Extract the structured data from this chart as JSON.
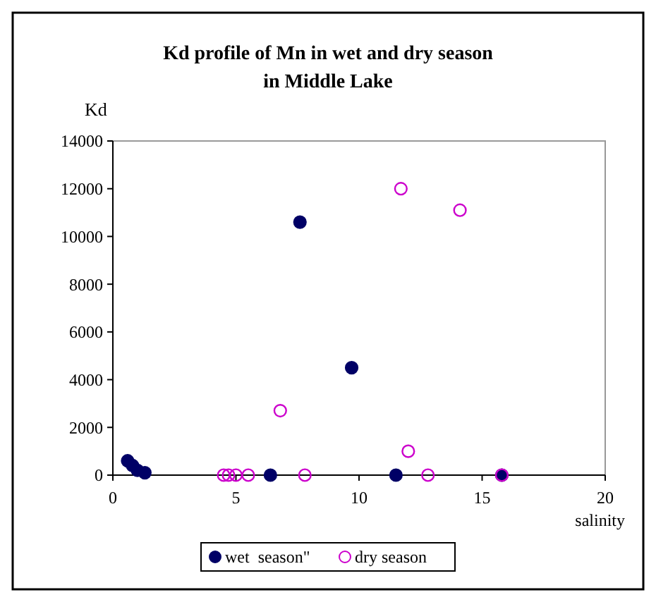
{
  "chart_data": {
    "type": "scatter",
    "title": "Kd profile of Mn in wet and dry season in Middle Lake",
    "xlabel": "salinity",
    "ylabel": "Kd",
    "xlim": [
      0,
      20
    ],
    "xticks": [
      0,
      5,
      10,
      15,
      20
    ],
    "ylim": [
      0,
      14000
    ],
    "yticks": [
      0,
      2000,
      4000,
      6000,
      8000,
      10000,
      12000,
      14000
    ],
    "grid": false,
    "legend": "bottom",
    "marker": "circle",
    "series": [
      {
        "name": "wet  season\"",
        "color": "#000066",
        "x": [
          0.6,
          0.8,
          1.0,
          1.3,
          6.4,
          7.6,
          9.7,
          11.5,
          15.8
        ],
        "values": [
          600,
          400,
          200,
          100,
          0,
          10600,
          4500,
          0,
          0
        ]
      },
      {
        "name": "dry season",
        "color": "#cc00cc",
        "x": [
          4.5,
          4.7,
          5.0,
          5.5,
          6.8,
          7.8,
          11.7,
          12.0,
          12.8,
          14.1,
          15.8
        ],
        "values": [
          0,
          0,
          0,
          0,
          2700,
          0,
          12000,
          1000,
          0,
          11100,
          0
        ]
      }
    ]
  }
}
